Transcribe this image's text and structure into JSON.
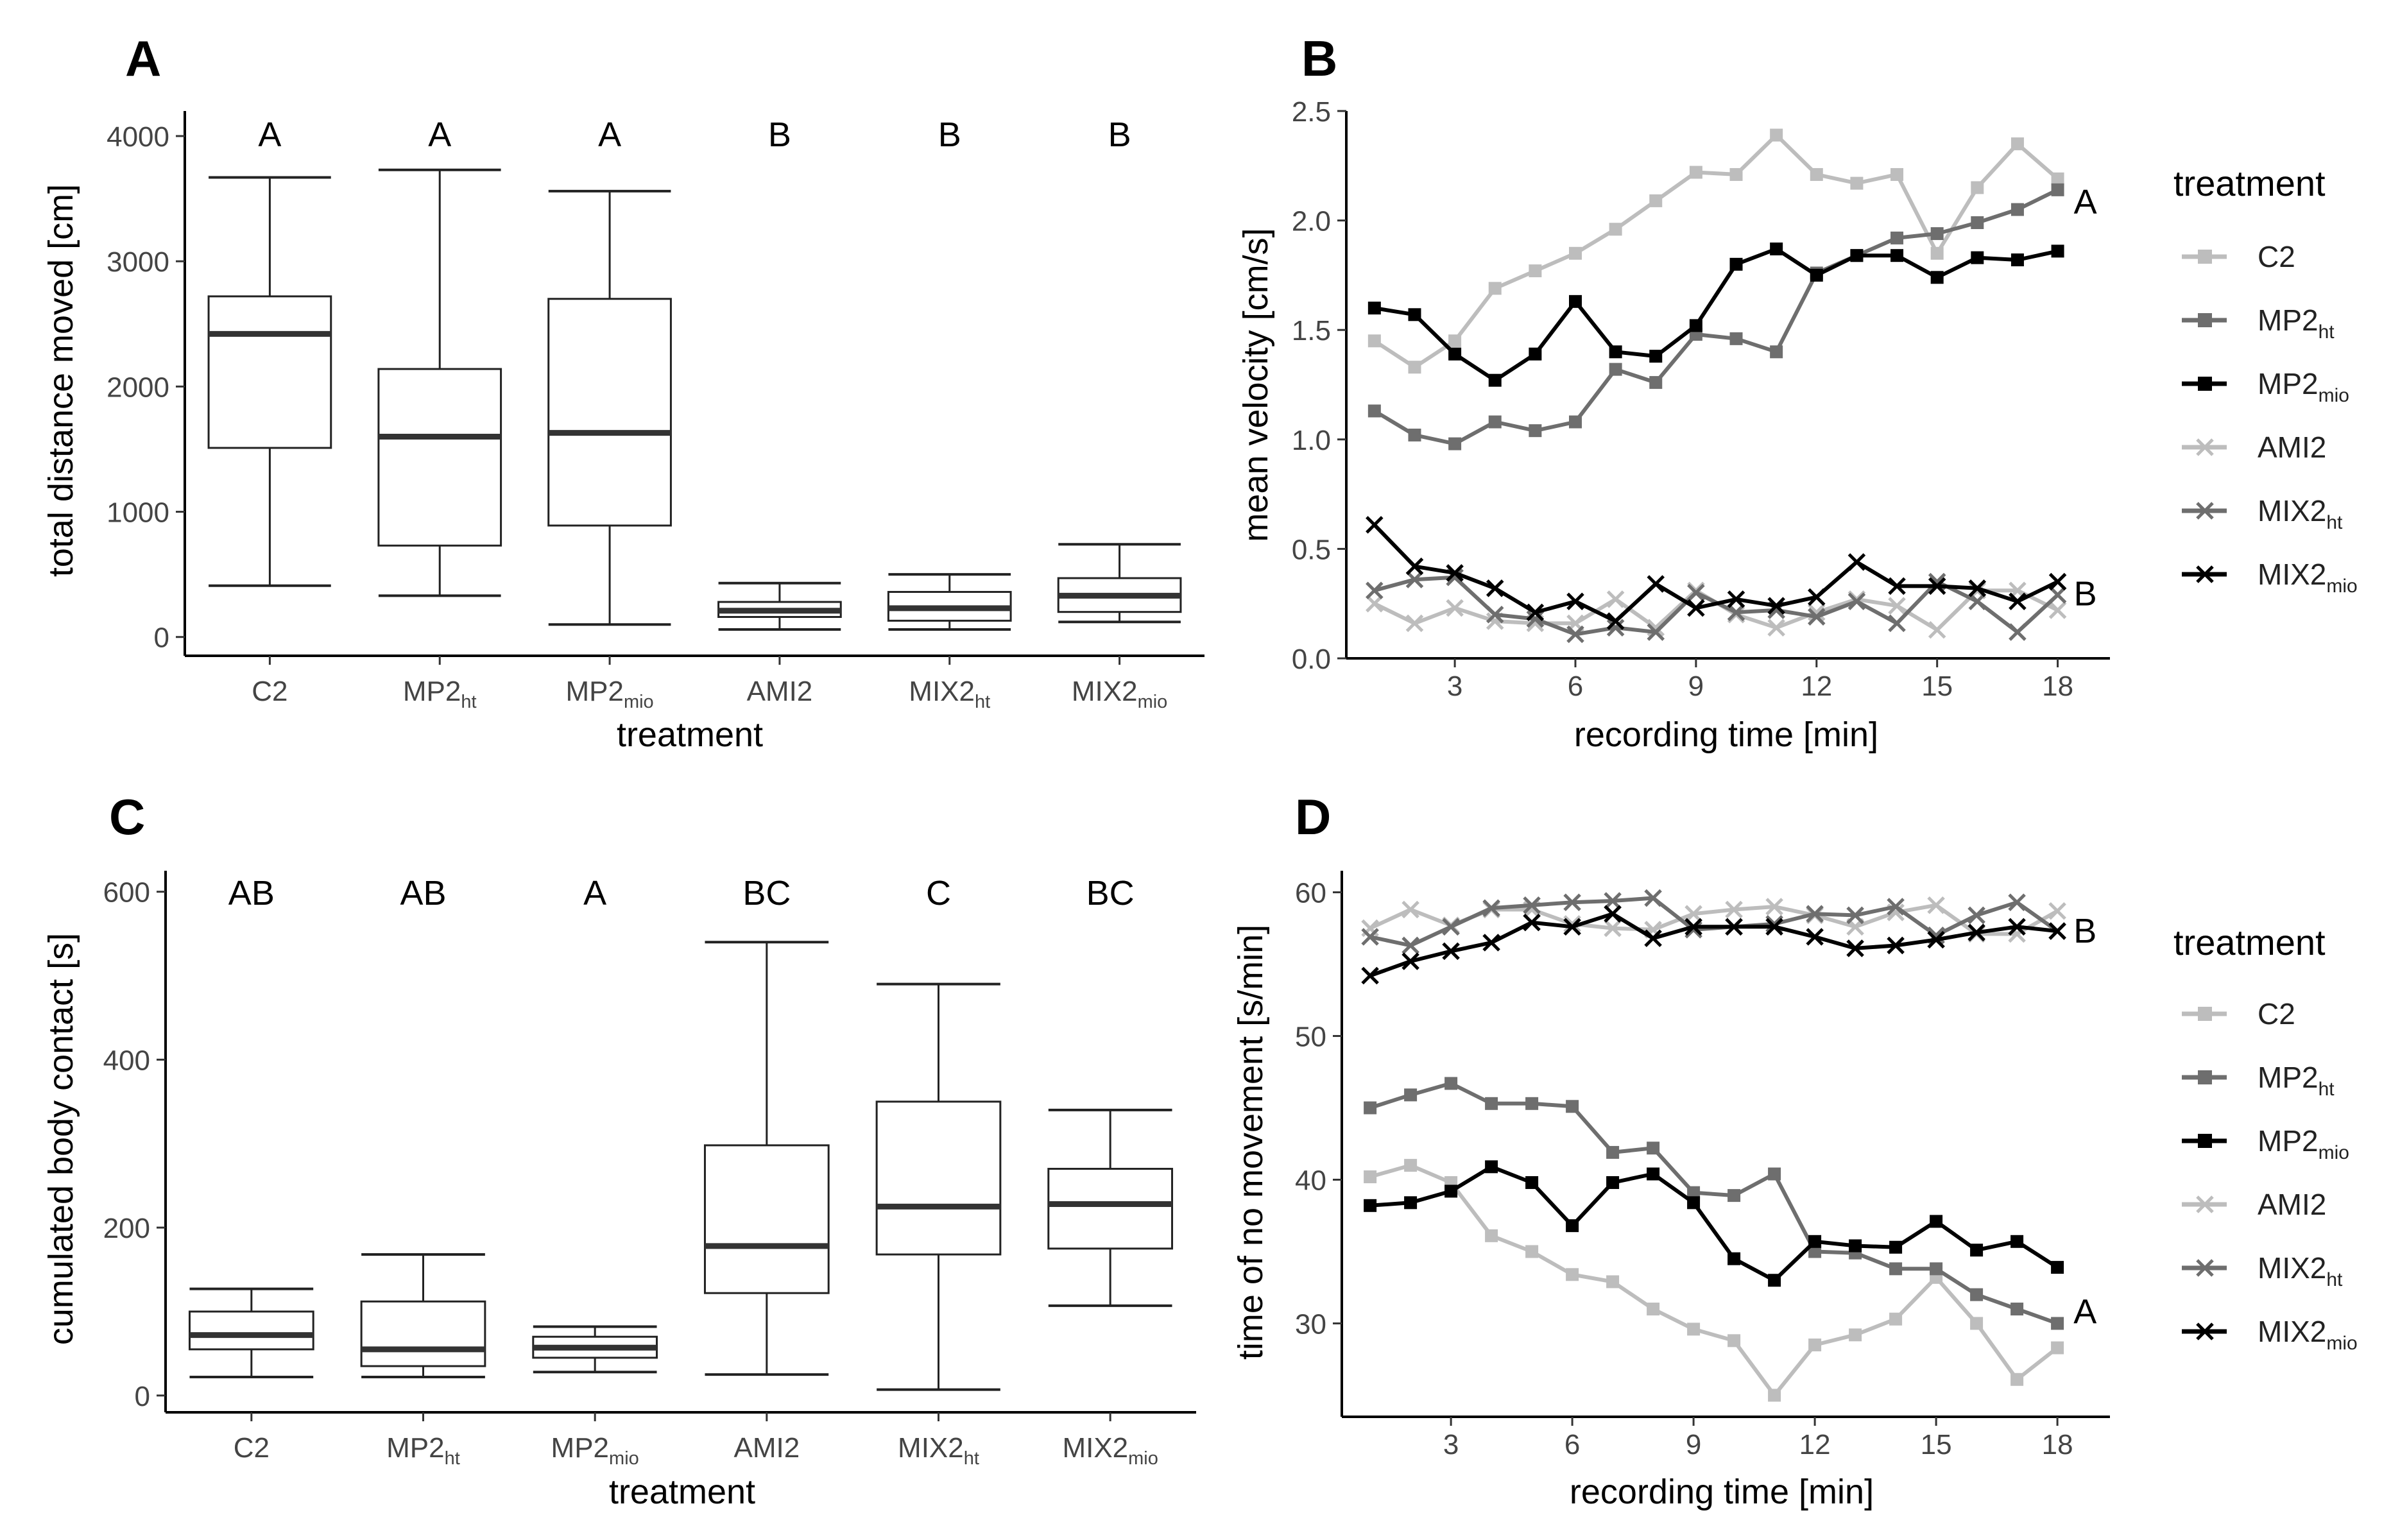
{
  "panels": {
    "A": {
      "letter": "A"
    },
    "B": {
      "letter": "B"
    },
    "C": {
      "letter": "C"
    },
    "D": {
      "letter": "D"
    }
  },
  "legend": {
    "title": "treatment",
    "items": [
      {
        "base": "C2",
        "sub": "",
        "color": "#bdbdbd",
        "marker": "square"
      },
      {
        "base": "MP2",
        "sub": "ht",
        "color": "#6e6e6e",
        "marker": "square"
      },
      {
        "base": "MP2",
        "sub": "mio",
        "color": "#000000",
        "marker": "square"
      },
      {
        "base": "AMI2",
        "sub": "",
        "color": "#bdbdbd",
        "marker": "cross"
      },
      {
        "base": "MIX2",
        "sub": "ht",
        "color": "#6e6e6e",
        "marker": "cross"
      },
      {
        "base": "MIX2",
        "sub": "mio",
        "color": "#000000",
        "marker": "cross"
      }
    ]
  },
  "chart_data": [
    {
      "panel": "A",
      "type": "box",
      "ylabel": "total distance moved [cm]",
      "xlabel": "treatment",
      "ylim": [
        -150,
        4200
      ],
      "yticks": [
        0,
        1000,
        2000,
        3000,
        4000
      ],
      "categories": [
        {
          "base": "C2",
          "sub": ""
        },
        {
          "base": "MP2",
          "sub": "ht"
        },
        {
          "base": "MP2",
          "sub": "mio"
        },
        {
          "base": "AMI2",
          "sub": ""
        },
        {
          "base": "MIX2",
          "sub": "ht"
        },
        {
          "base": "MIX2",
          "sub": "mio"
        }
      ],
      "boxes": [
        {
          "min": 410,
          "q1": 1510,
          "median": 2420,
          "q3": 2720,
          "max": 3670
        },
        {
          "min": 330,
          "q1": 730,
          "median": 1600,
          "q3": 2140,
          "max": 3730
        },
        {
          "min": 100,
          "q1": 890,
          "median": 1630,
          "q3": 2700,
          "max": 3560
        },
        {
          "min": 60,
          "q1": 160,
          "median": 210,
          "q3": 280,
          "max": 430
        },
        {
          "min": 60,
          "q1": 130,
          "median": 230,
          "q3": 360,
          "max": 500
        },
        {
          "min": 120,
          "q1": 200,
          "median": 330,
          "q3": 470,
          "max": 740
        }
      ],
      "letters": [
        "A",
        "A",
        "A",
        "B",
        "B",
        "B"
      ]
    },
    {
      "panel": "B",
      "type": "line",
      "ylabel": "mean velocity [cm/s]",
      "xlabel": "recording time [min]",
      "xlim": [
        0.3,
        19.3
      ],
      "ylim": [
        0,
        2.5
      ],
      "xticks": [
        3,
        6,
        9,
        12,
        15,
        18
      ],
      "yticks": [
        0.0,
        0.5,
        1.0,
        1.5,
        2.0,
        2.5
      ],
      "x": [
        1,
        2,
        3,
        4,
        5,
        6,
        7,
        8,
        9,
        10,
        11,
        12,
        13,
        14,
        15,
        16,
        17,
        18
      ],
      "series": [
        {
          "name": "C2",
          "values": [
            1.45,
            1.33,
            1.45,
            1.69,
            1.77,
            1.85,
            1.96,
            2.09,
            2.22,
            2.21,
            2.39,
            2.21,
            2.17,
            2.21,
            1.85,
            2.15,
            2.35,
            2.19
          ]
        },
        {
          "name": "MP2ht",
          "values": [
            1.13,
            1.02,
            0.98,
            1.08,
            1.04,
            1.08,
            1.32,
            1.26,
            1.48,
            1.46,
            1.4,
            1.76,
            1.84,
            1.92,
            1.94,
            1.99,
            2.05,
            2.14
          ]
        },
        {
          "name": "MP2mio",
          "values": [
            1.6,
            1.57,
            1.39,
            1.27,
            1.39,
            1.63,
            1.4,
            1.38,
            1.52,
            1.8,
            1.87,
            1.75,
            1.84,
            1.84,
            1.74,
            1.83,
            1.82,
            1.86
          ]
        },
        {
          "name": "AMI2",
          "values": [
            0.25,
            0.16,
            0.23,
            0.17,
            0.16,
            0.16,
            0.27,
            0.14,
            0.31,
            0.2,
            0.14,
            0.21,
            0.27,
            0.24,
            0.13,
            0.31,
            0.31,
            0.22
          ]
        },
        {
          "name": "MIX2ht",
          "values": [
            0.31,
            0.36,
            0.37,
            0.2,
            0.18,
            0.11,
            0.14,
            0.12,
            0.3,
            0.21,
            0.22,
            0.19,
            0.26,
            0.16,
            0.35,
            0.26,
            0.12,
            0.29
          ]
        },
        {
          "name": "MIX2mio",
          "values": [
            0.61,
            0.42,
            0.39,
            0.32,
            0.21,
            0.26,
            0.17,
            0.34,
            0.23,
            0.27,
            0.24,
            0.28,
            0.44,
            0.33,
            0.33,
            0.32,
            0.26,
            0.35
          ]
        }
      ],
      "group_labels": [
        {
          "text": "A",
          "x": 18.4,
          "y": 2.09
        },
        {
          "text": "B",
          "x": 18.4,
          "y": 0.3
        }
      ]
    },
    {
      "panel": "C",
      "type": "box",
      "ylabel": "cumulated body contact [s]",
      "xlabel": "treatment",
      "ylim": [
        -20,
        625
      ],
      "yticks": [
        0,
        200,
        400,
        600
      ],
      "categories": [
        {
          "base": "C2",
          "sub": ""
        },
        {
          "base": "MP2",
          "sub": "ht"
        },
        {
          "base": "MP2",
          "sub": "mio"
        },
        {
          "base": "AMI2",
          "sub": ""
        },
        {
          "base": "MIX2",
          "sub": "ht"
        },
        {
          "base": "MIX2",
          "sub": "mio"
        }
      ],
      "boxes": [
        {
          "min": 22,
          "q1": 55,
          "median": 72,
          "q3": 100,
          "max": 127
        },
        {
          "min": 22,
          "q1": 35,
          "median": 55,
          "q3": 112,
          "max": 168
        },
        {
          "min": 28,
          "q1": 45,
          "median": 57,
          "q3": 70,
          "max": 82
        },
        {
          "min": 25,
          "q1": 122,
          "median": 178,
          "q3": 298,
          "max": 540
        },
        {
          "min": 7,
          "q1": 168,
          "median": 225,
          "q3": 350,
          "max": 490
        },
        {
          "min": 107,
          "q1": 175,
          "median": 228,
          "q3": 270,
          "max": 340
        }
      ],
      "letters": [
        "AB",
        "AB",
        "A",
        "BC",
        "C",
        "BC"
      ]
    },
    {
      "panel": "D",
      "type": "line",
      "ylabel": "time of no movement [s/min]",
      "xlabel": "recording time [min]",
      "xlim": [
        0.3,
        19.3
      ],
      "ylim": [
        23.5,
        61.5
      ],
      "xticks": [
        3,
        6,
        9,
        12,
        15,
        18
      ],
      "yticks": [
        30,
        40,
        50,
        60
      ],
      "x": [
        1,
        2,
        3,
        4,
        5,
        6,
        7,
        8,
        9,
        10,
        11,
        12,
        13,
        14,
        15,
        16,
        17,
        18
      ],
      "series": [
        {
          "name": "C2",
          "values": [
            40.2,
            41.0,
            39.8,
            36.1,
            35.0,
            33.4,
            32.9,
            31.0,
            29.6,
            28.8,
            25.0,
            28.5,
            29.2,
            30.3,
            33.2,
            30.0,
            26.1,
            28.3
          ]
        },
        {
          "name": "MP2ht",
          "values": [
            45.0,
            45.9,
            46.7,
            45.3,
            45.3,
            45.1,
            41.9,
            42.2,
            39.1,
            38.9,
            40.4,
            35.0,
            34.9,
            33.8,
            33.8,
            32.0,
            31.0,
            30.0
          ]
        },
        {
          "name": "MP2mio",
          "values": [
            38.2,
            38.4,
            39.2,
            40.9,
            39.8,
            36.8,
            39.8,
            40.4,
            38.4,
            34.5,
            33.0,
            35.7,
            35.4,
            35.3,
            37.1,
            35.1,
            35.7,
            33.9
          ]
        },
        {
          "name": "AMI2",
          "values": [
            57.5,
            58.8,
            57.7,
            58.8,
            58.8,
            57.8,
            57.5,
            57.4,
            58.5,
            58.8,
            59.0,
            58.4,
            57.6,
            58.6,
            59.1,
            57.1,
            57.1,
            58.7
          ]
        },
        {
          "name": "MIX2ht",
          "values": [
            56.9,
            56.3,
            57.6,
            58.9,
            59.1,
            59.3,
            59.4,
            59.6,
            57.4,
            57.6,
            57.8,
            58.5,
            58.4,
            59.0,
            57.0,
            58.4,
            59.3,
            57.3
          ]
        },
        {
          "name": "MIX2mio",
          "values": [
            54.2,
            55.2,
            55.9,
            56.5,
            57.9,
            57.6,
            58.5,
            56.8,
            57.6,
            57.6,
            57.6,
            56.9,
            56.1,
            56.3,
            56.7,
            57.2,
            57.6,
            57.3
          ]
        }
      ],
      "group_labels": [
        {
          "text": "B",
          "x": 18.4,
          "y": 57.4
        },
        {
          "text": "A",
          "x": 18.4,
          "y": 30.9
        }
      ]
    }
  ]
}
